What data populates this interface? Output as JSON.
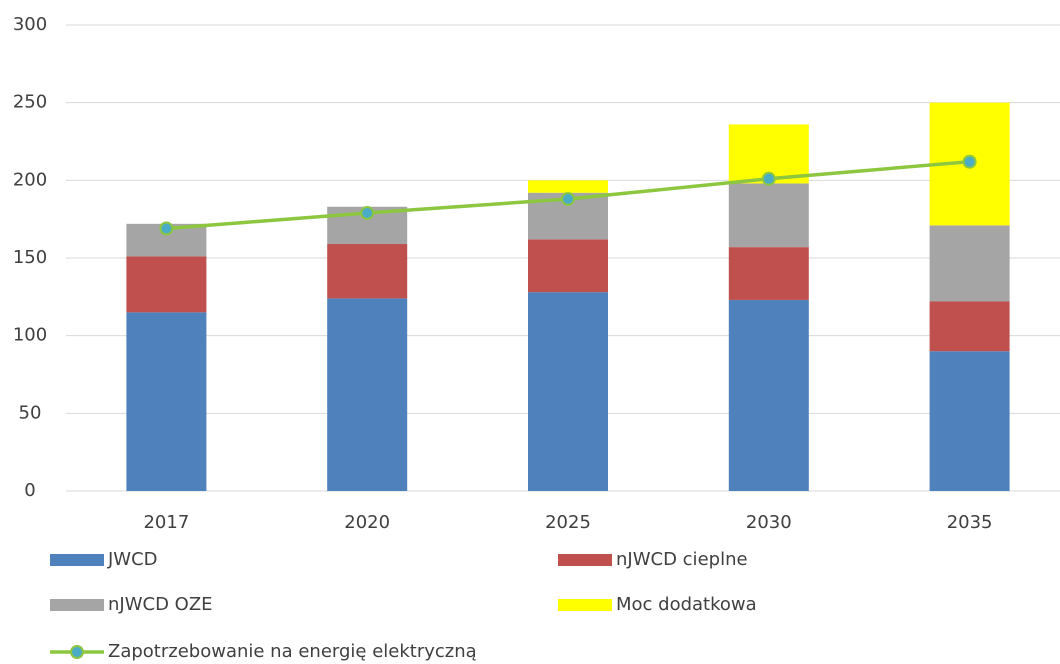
{
  "chart_data": {
    "type": "bar",
    "stacked": true,
    "categories": [
      "2017",
      "2020",
      "2025",
      "2030",
      "2035"
    ],
    "series": [
      {
        "name": "JWCD",
        "color": "#4f81bd",
        "values": [
          115,
          124,
          128,
          123,
          90
        ]
      },
      {
        "name": "nJWCD cieplne",
        "color": "#c0504d",
        "values": [
          36,
          35,
          34,
          34,
          32
        ]
      },
      {
        "name": "nJWCD OZE",
        "color": "#a5a5a5",
        "values": [
          21,
          24,
          30,
          41,
          49
        ]
      },
      {
        "name": "Moc dodatkowa",
        "color": "#ffff00",
        "values": [
          0,
          0,
          8,
          38,
          79
        ]
      },
      {
        "name": "Zapotrzebowanie na energię elektryczną",
        "type": "line",
        "color": "#8dc63f",
        "marker_color": "#4bacc6",
        "values": [
          169,
          179,
          188,
          201,
          212
        ]
      }
    ],
    "ylim": [
      0,
      300
    ],
    "yticks": [
      0,
      50,
      100,
      150,
      200,
      250,
      300
    ],
    "grid": true,
    "legend": "bottom"
  }
}
